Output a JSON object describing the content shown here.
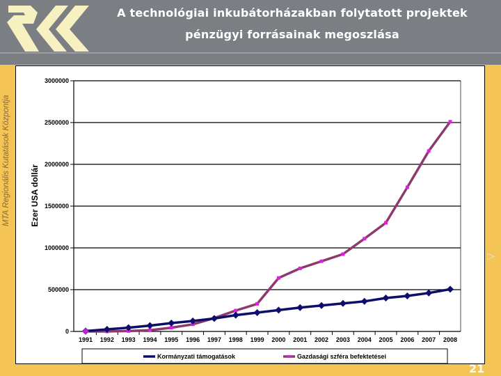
{
  "header": {
    "title_line1": "A technológiai inkubátorházakban folytatott projektek",
    "title_line2": "pénzügyi forrásainak megoszlása",
    "logo": "rkk-logo-icon"
  },
  "sidebar": {
    "organization": "MTA Regionális Kutatások Központja",
    "next_arrow": ">"
  },
  "footer": {
    "page_number": "21"
  },
  "colors": {
    "header_bg": "#7b7e83",
    "band": "#f4c454",
    "series_government": "#0d0d6b",
    "series_business": "#8b3a6b",
    "business_marker": "#e020e0"
  },
  "chart_data": {
    "type": "line",
    "title": "A technológiai inkubátorházakban folytatott projektek pénzügyi forrásainak megoszlása",
    "xlabel": "",
    "ylabel": "Ezer USA dollár",
    "ylim": [
      0,
      3000000
    ],
    "yticks": [
      "0",
      "500000",
      "1000000",
      "1500000",
      "2000000",
      "2500000",
      "3000000"
    ],
    "grid": true,
    "legend_position": "bottom",
    "categories": [
      "1991",
      "1992",
      "1993",
      "1994",
      "1995",
      "1996",
      "1997",
      "1998",
      "1999",
      "2000",
      "2001",
      "2002",
      "2003",
      "2004",
      "2005",
      "2006",
      "2007",
      "2008"
    ],
    "series": [
      {
        "name": "Kormányzati támogatások",
        "color": "#0d0d6b",
        "marker": "diamond",
        "values": [
          5000,
          25000,
          45000,
          70000,
          100000,
          125000,
          155000,
          195000,
          225000,
          255000,
          285000,
          310000,
          335000,
          360000,
          400000,
          425000,
          460000,
          505000
        ]
      },
      {
        "name": "Gazdasági szféra befektetései",
        "color": "#8b3a6b",
        "marker": "square",
        "values": [
          0,
          0,
          5000,
          15000,
          45000,
          85000,
          160000,
          250000,
          330000,
          640000,
          755000,
          840000,
          925000,
          1110000,
          1300000,
          1725000,
          2160000,
          2510000
        ]
      }
    ]
  }
}
